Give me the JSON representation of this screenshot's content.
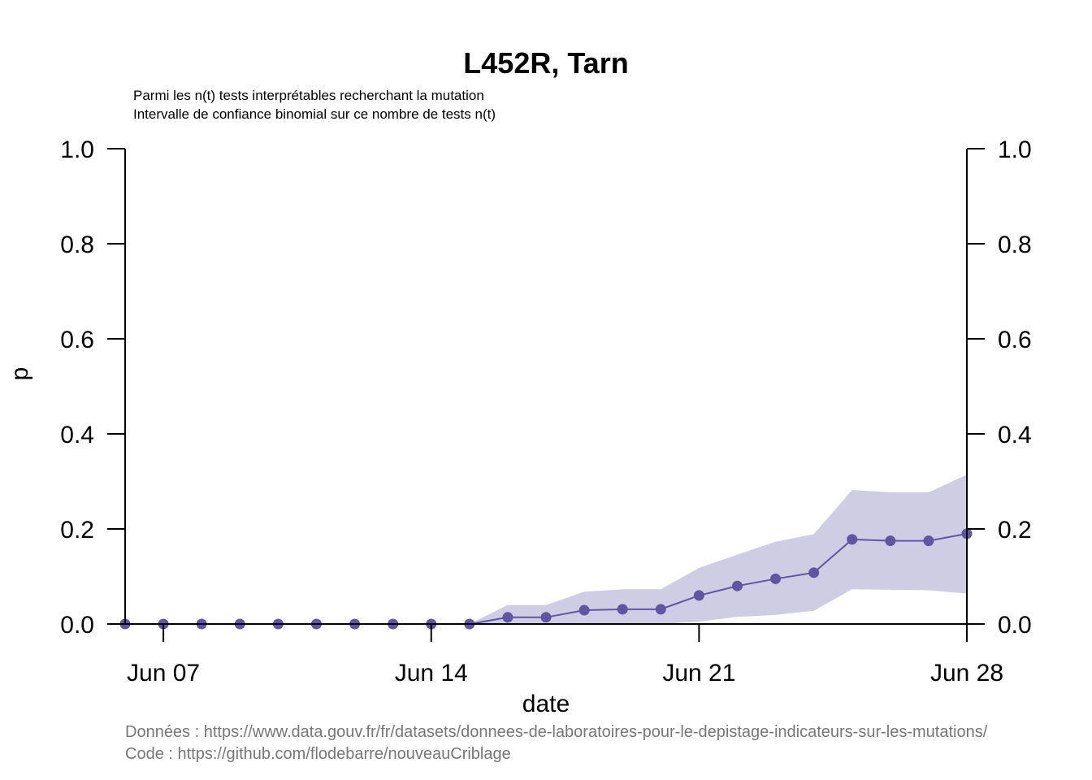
{
  "chart_data": {
    "type": "line",
    "title": "L452R, Tarn",
    "subtitle_lines": [
      "Parmi les n(t) tests interprétables recherchant la mutation",
      "Intervalle de confiance binomial sur ce nombre de tests n(t)"
    ],
    "xlabel": "date",
    "ylabel": "p",
    "x_tick_labels": [
      "Jun 07",
      "Jun 14",
      "Jun 21",
      "Jun 28"
    ],
    "x_tick_dates": [
      "2021-06-07",
      "2021-06-14",
      "2021-06-21",
      "2021-06-28"
    ],
    "y_ticks": [
      0.0,
      0.2,
      0.4,
      0.6,
      0.8,
      1.0
    ],
    "y_tick_labels": [
      "0.0",
      "0.2",
      "0.4",
      "0.6",
      "0.8",
      "1.0"
    ],
    "ylim": [
      0,
      1
    ],
    "xlim": [
      "2021-06-06",
      "2021-06-28"
    ],
    "grid": false,
    "series": [
      {
        "x": [
          "2021-06-06",
          "2021-06-07",
          "2021-06-08",
          "2021-06-09",
          "2021-06-10",
          "2021-06-11",
          "2021-06-12",
          "2021-06-13",
          "2021-06-14",
          "2021-06-15",
          "2021-06-16",
          "2021-06-17",
          "2021-06-18",
          "2021-06-19",
          "2021-06-20",
          "2021-06-21",
          "2021-06-22",
          "2021-06-23",
          "2021-06-24",
          "2021-06-25",
          "2021-06-26",
          "2021-06-27",
          "2021-06-28"
        ],
        "values": [
          0,
          0,
          0,
          0,
          0,
          0,
          0,
          0,
          0,
          0,
          0.014,
          0.014,
          0.029,
          0.031,
          0.031,
          0.06,
          0.08,
          0.095,
          0.108,
          0.178,
          0.175,
          0.175,
          0.19
        ],
        "ci_lower": [
          0,
          0,
          0,
          0,
          0,
          0,
          0,
          0,
          0,
          0,
          0,
          0,
          0,
          0,
          0,
          0.005,
          0.015,
          0.019,
          0.028,
          0.073,
          0.072,
          0.071,
          0.064
        ],
        "ci_upper": [
          0,
          0,
          0,
          0,
          0,
          0,
          0,
          0,
          0,
          0,
          0.04,
          0.04,
          0.068,
          0.073,
          0.073,
          0.118,
          0.146,
          0.173,
          0.189,
          0.282,
          0.277,
          0.277,
          0.314
        ],
        "color": "#5e55a3",
        "ci_color": "#cfcde4"
      }
    ],
    "caption_lines": [
      "Données : https://www.data.gouv.fr/fr/datasets/donnees-de-laboratoires-pour-le-depistage-indicateurs-sur-les-mutations/",
      "Code : https://github.com/flodebarre/nouveauCriblage"
    ]
  }
}
